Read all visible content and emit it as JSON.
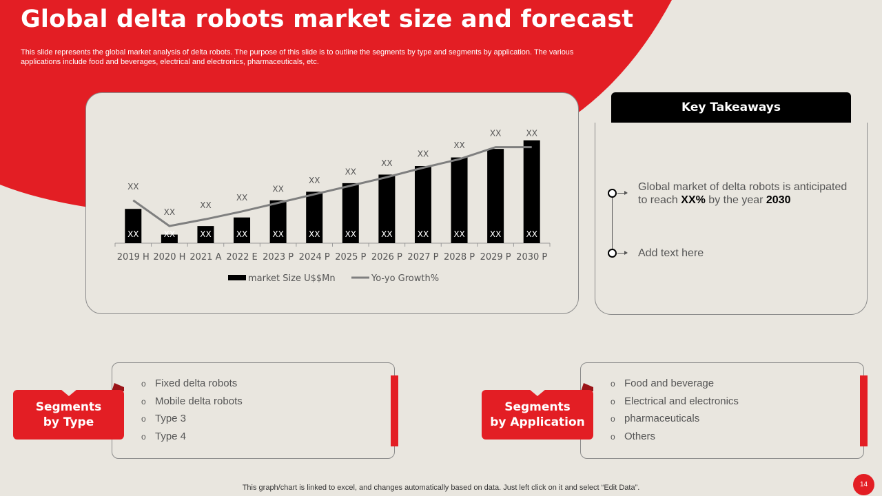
{
  "title": "Global delta robots market size and forecast",
  "subtitle": "This slide represents the global market analysis of delta robots. The purpose of this slide is to outline the segments by type  and segments by application. The various applications include food and beverages, electrical and electronics, pharmaceuticals, etc.",
  "chart_data": {
    "type": "bar",
    "categories": [
      "2019 H",
      "2020 H",
      "2021 A",
      "2022 E",
      "2023 P",
      "2024 P",
      "2025 P",
      "2026 P",
      "2027 P",
      "2028 P",
      "2029 P",
      "2030 P"
    ],
    "series": [
      {
        "name": "market Size U$$Mn",
        "type": "bar",
        "values": [
          40,
          10,
          20,
          30,
          50,
          60,
          70,
          80,
          90,
          100,
          110,
          120
        ],
        "labels": [
          "XX",
          "XX",
          "XX",
          "XX",
          "XX",
          "XX",
          "XX",
          "XX",
          "XX",
          "XX",
          "XX",
          "XX"
        ]
      },
      {
        "name": "Yo-yo Growth%",
        "type": "line",
        "values": [
          50,
          20,
          28,
          37,
          47,
          57,
          67,
          77,
          88,
          98,
          112,
          112
        ],
        "labels": [
          "XX",
          "XX",
          "XX",
          "XX",
          "XX",
          "XX",
          "XX",
          "XX",
          "XX",
          "XX",
          "XX",
          "XX"
        ]
      }
    ],
    "ylim": [
      0,
      135
    ],
    "legend": "bottom",
    "colors": {
      "bar": "#000000",
      "line": "#7f7f7f"
    }
  },
  "key_takeaways": {
    "header": "Key Takeaways",
    "items": [
      {
        "pre": "Global market of delta robots is anticipated to reach ",
        "bold1": "XX%",
        "mid": " by the year ",
        "bold2": "2030"
      },
      {
        "text": "Add text here"
      }
    ]
  },
  "segments_type": {
    "label_line1": "Segments",
    "label_line2": "by Type",
    "items": [
      "Fixed delta robots",
      "Mobile delta robots",
      "Type 3",
      "Type 4"
    ]
  },
  "segments_application": {
    "label_line1": "Segments",
    "label_line2": "by Application",
    "items": [
      "Food and beverage",
      "Electrical  and electronics",
      "pharmaceuticals",
      "Others"
    ]
  },
  "footer": "This graph/chart is linked to excel,  and changes automatically based on data. Just left click on it and select “Edit Data”.",
  "page_number": "14",
  "colors": {
    "accent": "#e31e24",
    "background": "#e9e6df",
    "dark": "#000000"
  }
}
